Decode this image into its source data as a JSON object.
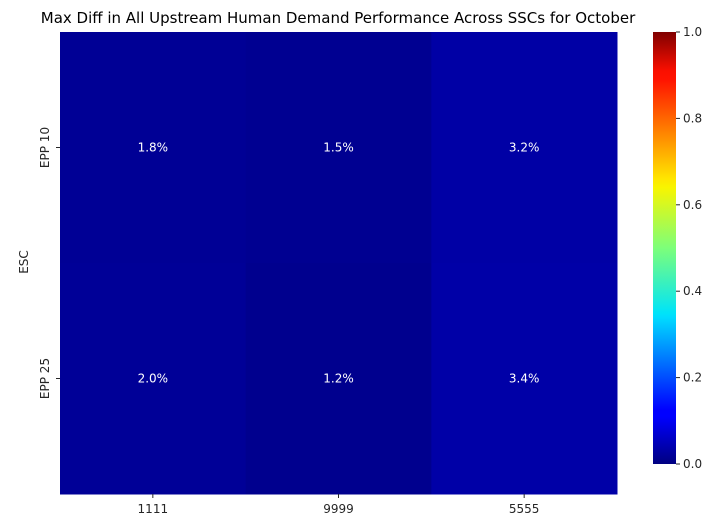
{
  "chart_data": {
    "type": "heatmap",
    "title": "Max Diff in All Upstream Human Demand Performance Across SSCs for October",
    "xlabel": "",
    "ylabel": "ESC",
    "x_categories": [
      "1111",
      "9999",
      "5555"
    ],
    "y_categories": [
      "EPP 10",
      "EPP 25"
    ],
    "values": [
      [
        0.018,
        0.015,
        0.032
      ],
      [
        0.02,
        0.012,
        0.034
      ]
    ],
    "cell_labels": [
      [
        "1.8%",
        "1.5%",
        "3.2%"
      ],
      [
        "2.0%",
        "1.2%",
        "3.4%"
      ]
    ],
    "colormap": "jet",
    "colorbar": {
      "range": [
        0.0,
        1.0
      ],
      "ticks": [
        0.0,
        0.2,
        0.4,
        0.6,
        0.8,
        1.0
      ],
      "tick_labels": [
        "0.0",
        "0.2",
        "0.4",
        "0.6",
        "0.8",
        "1.0"
      ]
    }
  }
}
